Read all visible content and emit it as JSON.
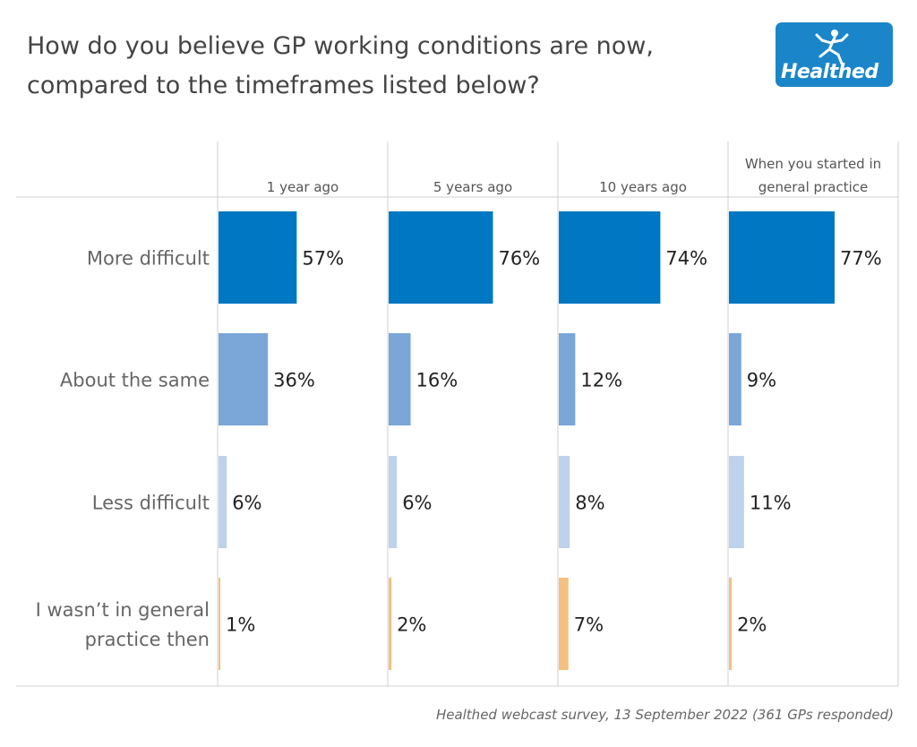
{
  "title": "How do you believe GP working conditions are now, compared to the timeframes listed below?",
  "logo": {
    "text": "Healthed",
    "icon": "running-figure-icon"
  },
  "source": "Healthed webcast survey, 13 September 2022 (361 GPs responded)",
  "colors": {
    "More difficult": "#0077c2",
    "About the same": "#7aa6d8",
    "Less difficult": "#bfd2ec",
    "I wasn’t in general practice then": "#f5c07f"
  },
  "chart_data": {
    "type": "bar",
    "orientation": "horizontal",
    "panels": [
      "1 year ago",
      "5 years ago",
      "10 years ago",
      "When you started in general practice"
    ],
    "panel_label_lines": [
      [
        "1 year ago"
      ],
      [
        "5 years ago"
      ],
      [
        "10 years ago"
      ],
      [
        "When you started in",
        "general practice"
      ]
    ],
    "categories": [
      "More difficult",
      "About the same",
      "Less difficult",
      "I wasn’t in general practice then"
    ],
    "category_label_lines": [
      [
        "More difficult"
      ],
      [
        "About the same"
      ],
      [
        "Less difficult"
      ],
      [
        "I wasn’t in general",
        "practice then"
      ]
    ],
    "series": [
      {
        "name": "1 year ago",
        "values": [
          57,
          36,
          6,
          1
        ]
      },
      {
        "name": "5 years ago",
        "values": [
          76,
          16,
          6,
          2
        ]
      },
      {
        "name": "10 years ago",
        "values": [
          74,
          12,
          8,
          7
        ]
      },
      {
        "name": "When you started in general practice",
        "values": [
          77,
          9,
          11,
          2
        ]
      }
    ],
    "value_suffix": "%",
    "xlim": [
      0,
      100
    ],
    "grid": false
  }
}
